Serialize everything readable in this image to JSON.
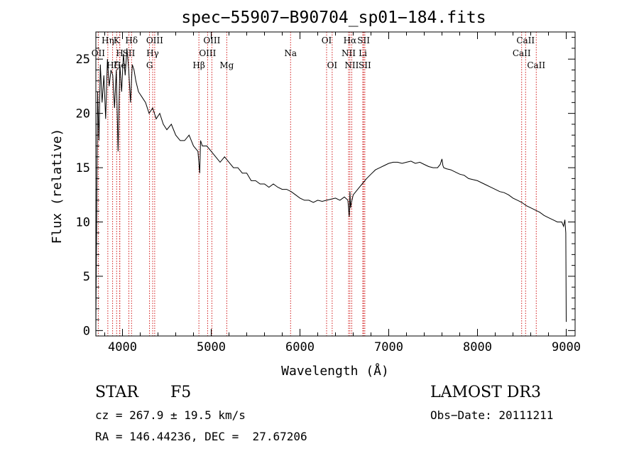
{
  "chart_data": {
    "type": "line",
    "title": "spec−55907−B90704_sp01−184.fits",
    "xlabel": "Wavelength (Å)",
    "ylabel": "Flux (relative)",
    "xlim": [
      3700,
      9100
    ],
    "ylim": [
      -0.5,
      27.5
    ],
    "xticks": [
      4000,
      5000,
      6000,
      7000,
      8000,
      9000
    ],
    "yticks": [
      0,
      5,
      10,
      15,
      20,
      25
    ],
    "series": [
      {
        "name": "spectrum",
        "x": [
          3700,
          3720,
          3735,
          3750,
          3770,
          3790,
          3810,
          3830,
          3850,
          3870,
          3890,
          3910,
          3930,
          3950,
          3970,
          3990,
          4010,
          4030,
          4050,
          4070,
          4090,
          4110,
          4130,
          4150,
          4180,
          4220,
          4260,
          4300,
          4340,
          4380,
          4420,
          4460,
          4500,
          4550,
          4600,
          4650,
          4700,
          4750,
          4800,
          4850,
          4870,
          4880,
          4900,
          4950,
          5000,
          5050,
          5100,
          5150,
          5200,
          5250,
          5300,
          5350,
          5400,
          5450,
          5500,
          5550,
          5600,
          5650,
          5700,
          5750,
          5800,
          5850,
          5900,
          5950,
          6000,
          6050,
          6100,
          6150,
          6200,
          6250,
          6300,
          6350,
          6400,
          6450,
          6500,
          6540,
          6555,
          6563,
          6570,
          6580,
          6600,
          6650,
          6700,
          6750,
          6800,
          6850,
          6900,
          6950,
          7000,
          7050,
          7100,
          7150,
          7200,
          7250,
          7300,
          7350,
          7400,
          7450,
          7500,
          7550,
          7580,
          7600,
          7610,
          7620,
          7650,
          7700,
          7750,
          7800,
          7850,
          7900,
          7950,
          8000,
          8050,
          8100,
          8150,
          8200,
          8250,
          8300,
          8350,
          8400,
          8450,
          8500,
          8550,
          8600,
          8650,
          8700,
          8750,
          8800,
          8850,
          8900,
          8950,
          8970,
          8985,
          8995,
          9000
        ],
        "values": [
          0.5,
          22.0,
          17.5,
          24.5,
          21.0,
          23.5,
          19.5,
          25.0,
          22.5,
          24.0,
          23.5,
          20.5,
          24.0,
          16.5,
          24.5,
          22.0,
          25.5,
          23.5,
          26.0,
          24.0,
          21.0,
          24.5,
          24.0,
          23.0,
          22.0,
          21.5,
          21.0,
          20.0,
          20.5,
          19.5,
          20.0,
          19.0,
          18.5,
          19.0,
          18.0,
          17.5,
          17.5,
          18.0,
          17.0,
          16.5,
          14.5,
          17.5,
          17.0,
          17.0,
          16.5,
          16.0,
          15.5,
          16.0,
          15.5,
          15.0,
          15.0,
          14.5,
          14.5,
          13.8,
          13.8,
          13.5,
          13.5,
          13.2,
          13.5,
          13.2,
          13.0,
          13.0,
          12.8,
          12.5,
          12.2,
          12.0,
          12.0,
          11.8,
          12.0,
          11.9,
          12.0,
          12.1,
          12.2,
          12.0,
          12.3,
          12.0,
          10.5,
          12.8,
          11.3,
          11.8,
          12.5,
          13.0,
          13.5,
          14.0,
          14.4,
          14.8,
          15.0,
          15.2,
          15.4,
          15.5,
          15.5,
          15.4,
          15.5,
          15.6,
          15.4,
          15.5,
          15.3,
          15.1,
          15.0,
          15.0,
          15.3,
          15.8,
          15.2,
          15.0,
          14.9,
          14.8,
          14.6,
          14.4,
          14.3,
          14.0,
          13.9,
          13.8,
          13.6,
          13.4,
          13.2,
          13.0,
          12.8,
          12.7,
          12.5,
          12.2,
          12.0,
          11.8,
          11.5,
          11.3,
          11.1,
          10.9,
          10.6,
          10.4,
          10.2,
          10.0,
          10.0,
          9.6,
          10.2,
          9.0,
          0.8
        ]
      }
    ],
    "lines": [
      {
        "label": "Hη",
        "wl": 3835,
        "row": 0
      },
      {
        "label": "OII",
        "wl": 3727,
        "row": 1
      },
      {
        "label": "Hζ",
        "wl": 3889,
        "row": 2
      },
      {
        "label": "K",
        "wl": 3934,
        "row": 0
      },
      {
        "label": "H",
        "wl": 3969,
        "row": 1
      },
      {
        "label": "He",
        "wl": 3970,
        "row": 2
      },
      {
        "label": "SII",
        "wl": 4072,
        "row": 1
      },
      {
        "label": "Hδ",
        "wl": 4102,
        "row": 0
      },
      {
        "label": "OIII",
        "wl": 4363,
        "row": 0
      },
      {
        "label": "Hγ",
        "wl": 4340,
        "row": 1
      },
      {
        "label": "G",
        "wl": 4305,
        "row": 2
      },
      {
        "label": "Hβ",
        "wl": 4861,
        "row": 2
      },
      {
        "label": "OIII",
        "wl": 5007,
        "row": 0
      },
      {
        "label": "OIII",
        "wl": 4959,
        "row": 1
      },
      {
        "label": "Mg",
        "wl": 5175,
        "row": 2
      },
      {
        "label": "Na",
        "wl": 5894,
        "row": 1
      },
      {
        "label": "OI",
        "wl": 6300,
        "row": 0
      },
      {
        "label": "OI",
        "wl": 6363,
        "row": 2
      },
      {
        "label": "Hα",
        "wl": 6563,
        "row": 0
      },
      {
        "label": "NII",
        "wl": 6548,
        "row": 1
      },
      {
        "label": "NII",
        "wl": 6583,
        "row": 2
      },
      {
        "label": "SII",
        "wl": 6717,
        "row": 0
      },
      {
        "label": "Li",
        "wl": 6708,
        "row": 1
      },
      {
        "label": "SII",
        "wl": 6731,
        "row": 2
      },
      {
        "label": "CaII",
        "wl": 8542,
        "row": 0
      },
      {
        "label": "CaII",
        "wl": 8498,
        "row": 1
      },
      {
        "label": "CaII",
        "wl": 8662,
        "row": 2
      }
    ]
  },
  "info": {
    "object_class": "STAR",
    "subclass": "F5",
    "survey": "LAMOST DR3",
    "redshift": "cz = 267.9 ± 19.5 km/s",
    "obs_date": "Obs−Date: 20111211",
    "coords": "RA = 146.44236, DEC =  27.67206"
  },
  "colors": {
    "axis": "#000000",
    "spectrum": "#000000",
    "line_marker": "#cc0000",
    "background": "#ffffff"
  }
}
